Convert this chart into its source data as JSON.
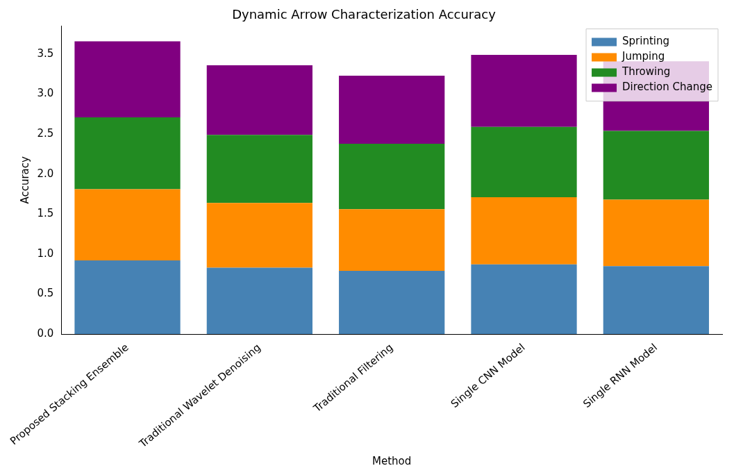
{
  "chart_data": {
    "type": "bar",
    "title": "Dynamic Arrow Characterization Accuracy",
    "xlabel": "Method",
    "ylabel": "Accuracy",
    "categories": [
      "Proposed Stacking Ensemble",
      "Traditional Wavelet Denoising",
      "Traditional Filtering",
      "Single CNN Model",
      "Single RNN Model"
    ],
    "stacked": true,
    "series": [
      {
        "name": "Sprinting",
        "color": "#4682b4",
        "values": [
          0.92,
          0.83,
          0.79,
          0.87,
          0.85
        ]
      },
      {
        "name": "Jumping",
        "color": "#ff8c00",
        "values": [
          0.89,
          0.81,
          0.77,
          0.84,
          0.83
        ]
      },
      {
        "name": "Throwing",
        "color": "#228b22",
        "values": [
          0.9,
          0.85,
          0.82,
          0.88,
          0.86
        ]
      },
      {
        "name": "Direction Change",
        "color": "#800080",
        "values": [
          0.95,
          0.87,
          0.85,
          0.9,
          0.87
        ]
      }
    ],
    "ylim": [
      0,
      3.85
    ],
    "yticks": [
      {
        "value": 0,
        "label": "0.0"
      },
      0.5,
      {
        "value": 1,
        "label": "1.0"
      },
      1.5,
      {
        "value": 2,
        "label": "2.0"
      },
      2.5,
      {
        "value": 3,
        "label": "3.0"
      },
      3.5
    ],
    "legend": "top right",
    "grid": false
  }
}
